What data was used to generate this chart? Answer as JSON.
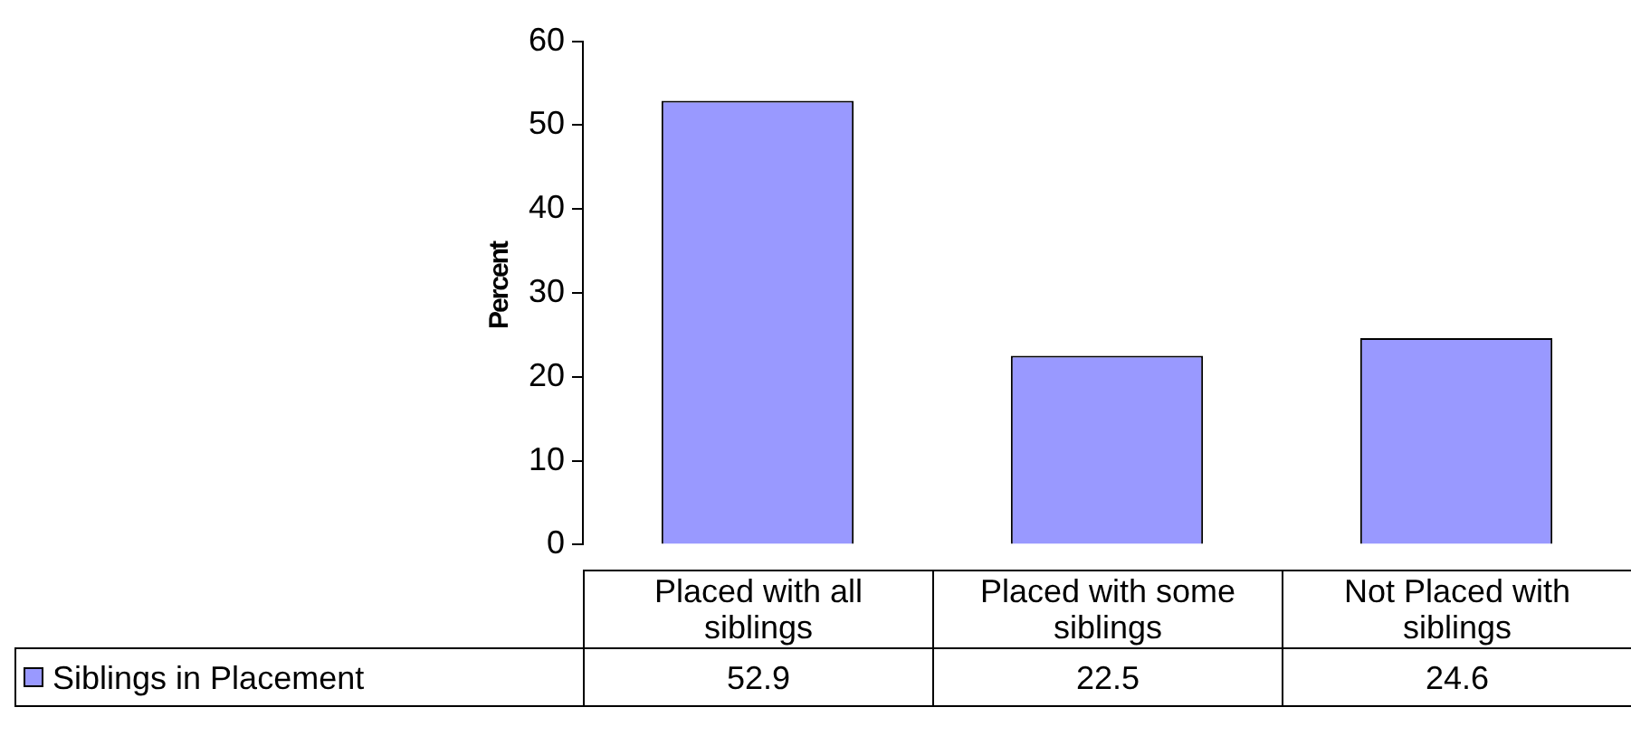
{
  "chart_data": {
    "type": "bar",
    "ylabel": "Percent",
    "categories": [
      "Placed with all siblings",
      "Placed with some siblings",
      "Not Placed with siblings"
    ],
    "series": [
      {
        "name": "Siblings in Placement",
        "color": "#9999ff",
        "values": [
          52.9,
          22.5,
          24.6
        ]
      }
    ],
    "ylim": [
      0,
      60
    ],
    "yticks": [
      0,
      10,
      20,
      30,
      40,
      50,
      60
    ],
    "grid": false,
    "legend": "bottom",
    "data_labels": true
  }
}
